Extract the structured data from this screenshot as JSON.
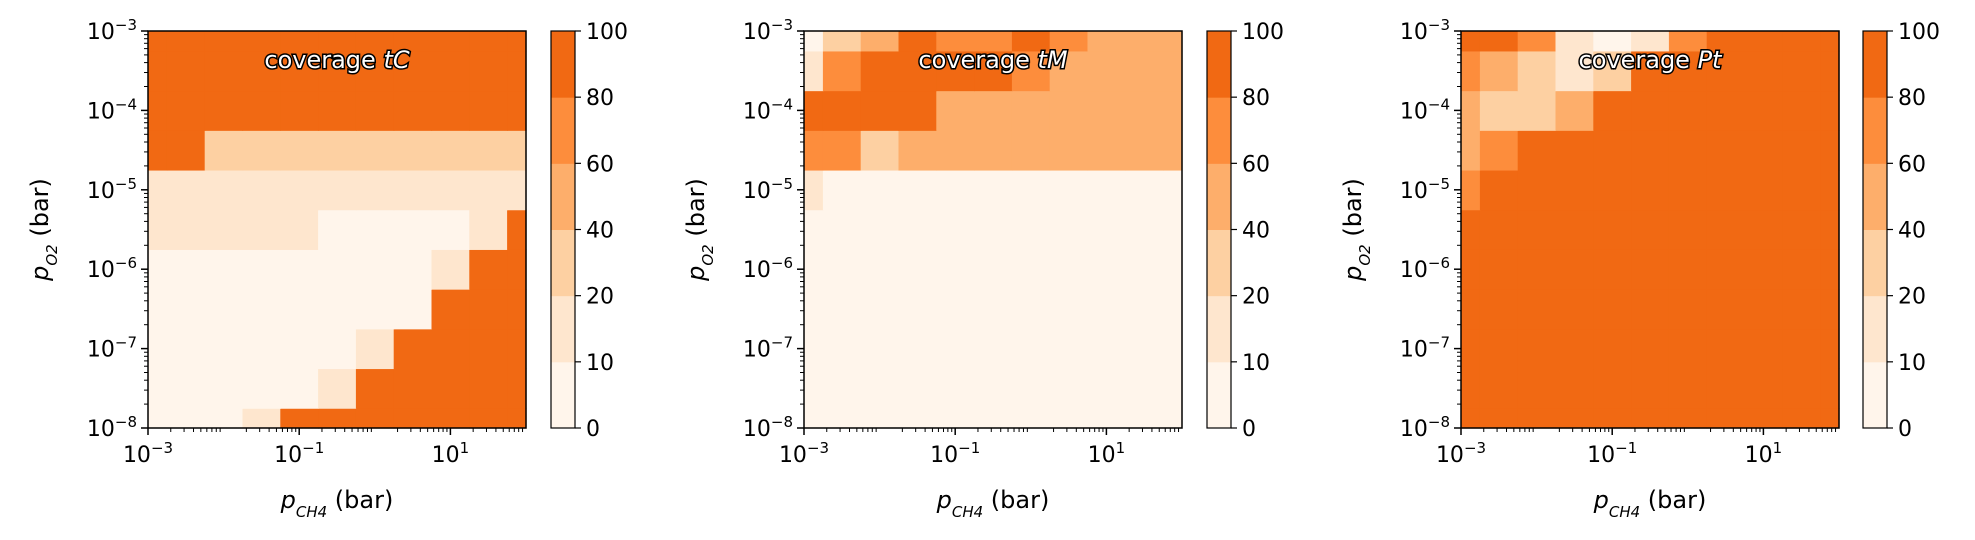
{
  "chart_data": [
    {
      "type": "heatmap",
      "title_plain": "coverage ",
      "title_italic": "tC",
      "xlabel_symbol": "p",
      "xlabel_sub": "CH4",
      "xlabel_unit": " (bar)",
      "ylabel_symbol": "p",
      "ylabel_sub": "O2",
      "ylabel_unit": " (bar)",
      "x_scale": "log",
      "y_scale": "log",
      "xlim": [
        0.001,
        100
      ],
      "ylim": [
        1e-08,
        0.001
      ],
      "x_ticks": [
        {
          "base": "10",
          "exp": "−3",
          "value": 0.001
        },
        {
          "base": "10",
          "exp": "−1",
          "value": 0.1
        },
        {
          "base": "10",
          "exp": "1",
          "value": 10
        }
      ],
      "y_ticks": [
        {
          "base": "10",
          "exp": "−8",
          "value": 1e-08
        },
        {
          "base": "10",
          "exp": "−7",
          "value": 1e-07
        },
        {
          "base": "10",
          "exp": "−6",
          "value": 1e-06
        },
        {
          "base": "10",
          "exp": "−5",
          "value": 1e-05
        },
        {
          "base": "10",
          "exp": "−4",
          "value": 0.0001
        },
        {
          "base": "10",
          "exp": "−3",
          "value": 0.001
        }
      ],
      "colorbar_levels": [
        0,
        10,
        20,
        40,
        60,
        80,
        100
      ],
      "log_x_grid": [
        -3,
        -2.5,
        -2,
        -1.5,
        -1,
        -0.5,
        0,
        0.5,
        1,
        1.5,
        2
      ],
      "log_y_grid": [
        -8,
        -7.5,
        -7,
        -6.5,
        -6,
        -5.5,
        -5,
        -4.5,
        -4,
        -3.5,
        -3
      ],
      "z": [
        [
          5,
          5,
          8,
          10,
          100,
          100,
          100,
          100,
          100,
          100,
          100
        ],
        [
          5,
          5,
          5,
          5,
          8,
          12,
          100,
          100,
          100,
          100,
          100
        ],
        [
          5,
          5,
          5,
          5,
          5,
          5,
          10,
          100,
          100,
          100,
          100
        ],
        [
          8,
          5,
          5,
          5,
          5,
          5,
          5,
          8,
          100,
          100,
          100
        ],
        [
          8,
          8,
          8,
          5,
          5,
          5,
          5,
          5,
          12,
          100,
          100
        ],
        [
          10,
          10,
          10,
          10,
          10,
          5,
          5,
          5,
          5,
          12,
          100
        ],
        [
          15,
          12,
          15,
          15,
          15,
          15,
          15,
          12,
          12,
          10,
          15
        ],
        [
          100,
          80,
          30,
          30,
          30,
          30,
          30,
          30,
          30,
          30,
          30
        ],
        [
          100,
          100,
          100,
          100,
          95,
          95,
          95,
          95,
          95,
          95,
          95
        ],
        [
          100,
          100,
          100,
          100,
          100,
          100,
          100,
          100,
          100,
          100,
          100
        ],
        [
          100,
          100,
          100,
          100,
          100,
          100,
          100,
          100,
          100,
          100,
          100
        ]
      ]
    },
    {
      "type": "heatmap",
      "title_plain": "coverage ",
      "title_italic": "tM",
      "xlabel_symbol": "p",
      "xlabel_sub": "CH4",
      "xlabel_unit": " (bar)",
      "ylabel_symbol": "p",
      "ylabel_sub": "O2",
      "ylabel_unit": " (bar)",
      "x_scale": "log",
      "y_scale": "log",
      "xlim": [
        0.001,
        100
      ],
      "ylim": [
        1e-08,
        0.001
      ],
      "x_ticks": [
        {
          "base": "10",
          "exp": "−3",
          "value": 0.001
        },
        {
          "base": "10",
          "exp": "−1",
          "value": 0.1
        },
        {
          "base": "10",
          "exp": "1",
          "value": 10
        }
      ],
      "y_ticks": [
        {
          "base": "10",
          "exp": "−8",
          "value": 1e-08
        },
        {
          "base": "10",
          "exp": "−7",
          "value": 1e-07
        },
        {
          "base": "10",
          "exp": "−6",
          "value": 1e-06
        },
        {
          "base": "10",
          "exp": "−5",
          "value": 1e-05
        },
        {
          "base": "10",
          "exp": "−4",
          "value": 0.0001
        },
        {
          "base": "10",
          "exp": "−3",
          "value": 0.001
        }
      ],
      "colorbar_levels": [
        0,
        10,
        20,
        40,
        60,
        80,
        100
      ],
      "log_x_grid": [
        -3,
        -2.5,
        -2,
        -1.5,
        -1,
        -0.5,
        0,
        0.5,
        1,
        1.5,
        2
      ],
      "log_y_grid": [
        -8,
        -7.5,
        -7,
        -6.5,
        -6,
        -5.5,
        -5,
        -4.5,
        -4,
        -3.5,
        -3
      ],
      "z": [
        [
          2,
          2,
          2,
          2,
          2,
          2,
          2,
          2,
          2,
          2,
          2
        ],
        [
          2,
          2,
          2,
          2,
          2,
          2,
          2,
          2,
          2,
          2,
          2
        ],
        [
          2,
          2,
          2,
          2,
          2,
          2,
          2,
          2,
          2,
          2,
          2
        ],
        [
          2,
          2,
          2,
          2,
          2,
          2,
          2,
          2,
          2,
          2,
          2
        ],
        [
          2,
          2,
          2,
          2,
          2,
          2,
          2,
          2,
          2,
          2,
          2
        ],
        [
          2,
          2,
          2,
          2,
          2,
          2,
          2,
          2,
          2,
          2,
          2
        ],
        [
          15,
          5,
          2,
          2,
          2,
          2,
          2,
          2,
          2,
          2,
          2
        ],
        [
          70,
          60,
          30,
          50,
          50,
          50,
          50,
          50,
          50,
          50,
          50
        ],
        [
          85,
          85,
          90,
          85,
          55,
          55,
          55,
          55,
          50,
          50,
          50
        ],
        [
          15,
          75,
          85,
          90,
          85,
          80,
          60,
          55,
          50,
          50,
          50
        ],
        [
          5,
          20,
          50,
          80,
          70,
          75,
          80,
          60,
          50,
          50,
          50
        ]
      ]
    },
    {
      "type": "heatmap",
      "title_plain": "coverage ",
      "title_italic": "Pt",
      "xlabel_symbol": "p",
      "xlabel_sub": "CH4",
      "xlabel_unit": " (bar)",
      "ylabel_symbol": "p",
      "ylabel_sub": "O2",
      "ylabel_unit": " (bar)",
      "x_scale": "log",
      "y_scale": "log",
      "xlim": [
        0.001,
        100
      ],
      "ylim": [
        1e-08,
        0.001
      ],
      "x_ticks": [
        {
          "base": "10",
          "exp": "−3",
          "value": 0.001
        },
        {
          "base": "10",
          "exp": "−1",
          "value": 0.1
        },
        {
          "base": "10",
          "exp": "1",
          "value": 10
        }
      ],
      "y_ticks": [
        {
          "base": "10",
          "exp": "−8",
          "value": 1e-08
        },
        {
          "base": "10",
          "exp": "−7",
          "value": 1e-07
        },
        {
          "base": "10",
          "exp": "−6",
          "value": 1e-06
        },
        {
          "base": "10",
          "exp": "−5",
          "value": 1e-05
        },
        {
          "base": "10",
          "exp": "−4",
          "value": 0.0001
        },
        {
          "base": "10",
          "exp": "−3",
          "value": 0.001
        }
      ],
      "colorbar_levels": [
        0,
        10,
        20,
        40,
        60,
        80,
        100
      ],
      "log_x_grid": [
        -3,
        -2.5,
        -2,
        -1.5,
        -1,
        -0.5,
        0,
        0.5,
        1,
        1.5,
        2
      ],
      "log_y_grid": [
        -8,
        -7.5,
        -7,
        -6.5,
        -6,
        -5.5,
        -5,
        -4.5,
        -4,
        -3.5,
        -3
      ],
      "z": [
        [
          100,
          100,
          100,
          100,
          100,
          100,
          100,
          100,
          100,
          100,
          100
        ],
        [
          100,
          100,
          100,
          100,
          100,
          100,
          100,
          100,
          100,
          100,
          100
        ],
        [
          100,
          100,
          100,
          100,
          100,
          100,
          100,
          100,
          100,
          100,
          100
        ],
        [
          100,
          100,
          100,
          100,
          100,
          100,
          100,
          100,
          100,
          100,
          100
        ],
        [
          100,
          100,
          100,
          100,
          100,
          100,
          100,
          100,
          100,
          100,
          100
        ],
        [
          85,
          100,
          100,
          100,
          100,
          100,
          100,
          100,
          100,
          100,
          100
        ],
        [
          70,
          90,
          100,
          100,
          100,
          100,
          100,
          100,
          100,
          100,
          100
        ],
        [
          50,
          60,
          85,
          100,
          100,
          100,
          100,
          100,
          100,
          100,
          100
        ],
        [
          50,
          30,
          30,
          50,
          80,
          100,
          100,
          100,
          100,
          100,
          100
        ],
        [
          70,
          50,
          30,
          15,
          20,
          85,
          100,
          100,
          100,
          100,
          100
        ],
        [
          90,
          80,
          60,
          10,
          5,
          15,
          60,
          100,
          100,
          100,
          100
        ]
      ]
    }
  ],
  "colormap": {
    "name": "Oranges",
    "colors": [
      "#fff5eb",
      "#fee6ce",
      "#fdd0a2",
      "#fdae6b",
      "#fd8d3c",
      "#f16913",
      "#d94801",
      "#8c2d04"
    ]
  }
}
